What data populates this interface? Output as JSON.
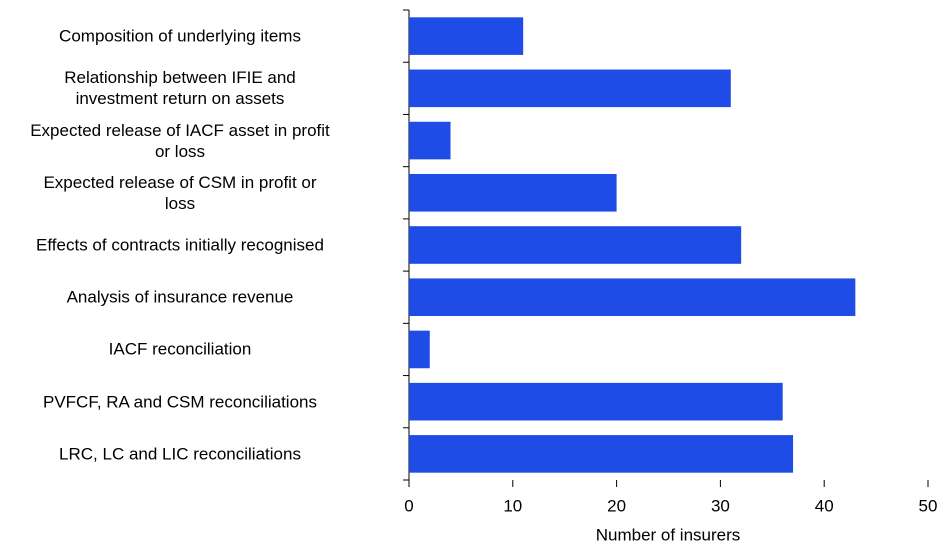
{
  "chart_data": {
    "type": "barh",
    "categories": [
      "Composition of underlying items",
      "Relationship between IFIE and\ninvestment return on assets",
      "Expected release of IACF asset in profit\nor loss",
      "Expected release of CSM in profit or\nloss",
      "Effects of contracts initially recognised",
      "Analysis of insurance revenue",
      "IACF reconciliation",
      "PVFCF, RA and CSM reconciliations",
      "LRC, LC and LIC reconciliations"
    ],
    "values": [
      11,
      31,
      4,
      20,
      32,
      43,
      2,
      36,
      37
    ],
    "color": "#1f4ce6",
    "xlabel": "Number of insurers",
    "xlim": [
      0,
      50
    ],
    "xticks": [
      0,
      10,
      20,
      30,
      40,
      50
    ],
    "grid": false
  }
}
